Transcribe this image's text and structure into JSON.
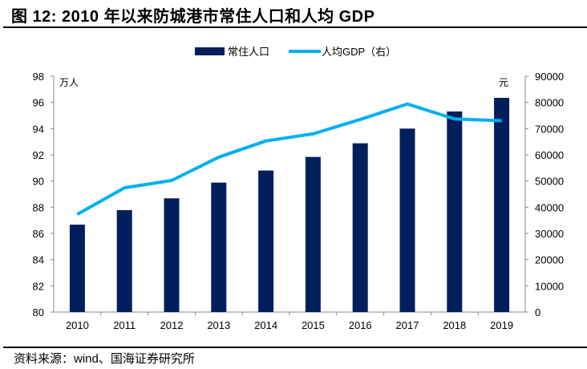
{
  "title": "图 12:  2010 年以来防城港市常住人口和人均 GDP",
  "source": "资料来源：wind、国海证券研究所",
  "colors": {
    "bar": "#001F5C",
    "line": "#00B0F0"
  },
  "chart_data": {
    "type": "bar+line",
    "categories": [
      "2010",
      "2011",
      "2012",
      "2013",
      "2014",
      "2015",
      "2016",
      "2017",
      "2018",
      "2019"
    ],
    "series": [
      {
        "name": "常住人口",
        "type": "bar",
        "axis": "left",
        "values": [
          86.67,
          87.78,
          88.68,
          89.88,
          90.8,
          91.84,
          92.88,
          94.0,
          95.31,
          96.35
        ]
      },
      {
        "name": "人均GDP（右）",
        "type": "line",
        "axis": "right",
        "values": [
          37300,
          47400,
          50200,
          59100,
          65300,
          68000,
          73500,
          79400,
          73700,
          73000
        ]
      }
    ],
    "left_axis": {
      "unit": "万人",
      "ylim": [
        80,
        98
      ],
      "ticks": [
        "80",
        "82",
        "84",
        "86",
        "88",
        "90",
        "92",
        "94",
        "96",
        "98"
      ]
    },
    "right_axis": {
      "unit": "元",
      "ylim": [
        0,
        90000
      ],
      "ticks": [
        "0",
        "10000",
        "20000",
        "30000",
        "40000",
        "50000",
        "60000",
        "70000",
        "80000",
        "90000"
      ]
    },
    "grid": false,
    "legend": "top"
  }
}
